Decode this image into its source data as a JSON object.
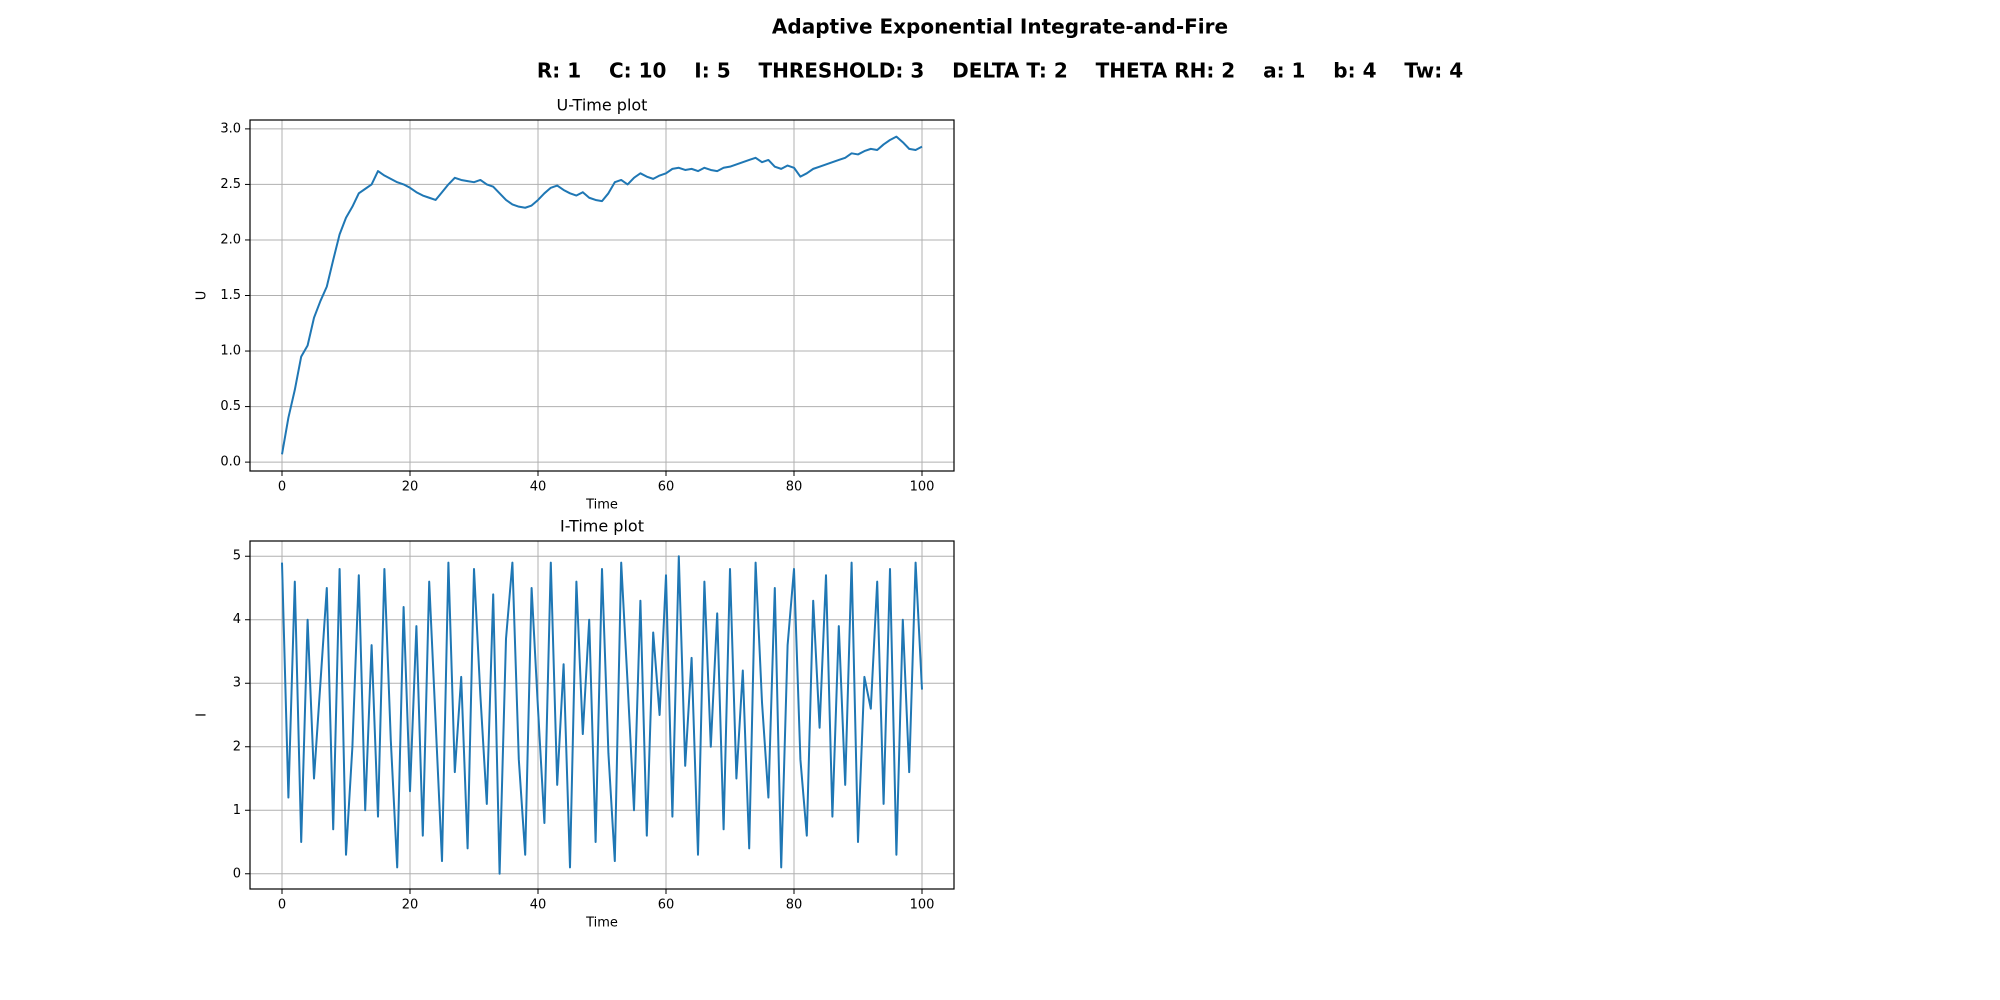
{
  "title": "Adaptive Exponential Integrate-and-Fire",
  "subtitle": "R: 1    C: 10    I: 5    THRESHOLD: 3    DELTA T: 2    THETA RH: 2    a: 1    b: 4    Tw: 4",
  "chart_data": [
    {
      "type": "line",
      "title": "U-Time plot",
      "x_label": "Time",
      "y_label": "U",
      "grid": true,
      "xlim": [
        -5,
        105
      ],
      "xticks": [
        0,
        20,
        40,
        60,
        80,
        100
      ],
      "ylim": [
        -0.08,
        3.08
      ],
      "yticks": [
        {
          "value": 0,
          "label": "0.0"
        },
        0.5,
        {
          "value": 1,
          "label": "1.0"
        },
        1.5,
        {
          "value": 2,
          "label": "2.0"
        },
        2.5,
        {
          "value": 3,
          "label": "3.0"
        }
      ],
      "x": [
        0,
        1,
        2,
        3,
        4,
        5,
        6,
        7,
        8,
        9,
        10,
        11,
        12,
        13,
        14,
        15,
        16,
        17,
        18,
        19,
        20,
        21,
        22,
        23,
        24,
        25,
        26,
        27,
        28,
        29,
        30,
        31,
        32,
        33,
        34,
        35,
        36,
        37,
        38,
        39,
        40,
        41,
        42,
        43,
        44,
        45,
        46,
        47,
        48,
        49,
        50,
        51,
        52,
        53,
        54,
        55,
        56,
        57,
        58,
        59,
        60,
        61,
        62,
        63,
        64,
        65,
        66,
        67,
        68,
        69,
        70,
        71,
        72,
        73,
        74,
        75,
        76,
        77,
        78,
        79,
        80,
        81,
        82,
        83,
        84,
        85,
        86,
        87,
        88,
        89,
        90,
        91,
        92,
        93,
        94,
        95,
        96,
        97,
        98,
        99,
        100
      ],
      "series": [
        {
          "color": "#1f77b4",
          "values": [
            0.07,
            0.4,
            0.65,
            0.95,
            1.05,
            1.3,
            1.45,
            1.58,
            1.82,
            2.05,
            2.2,
            2.3,
            2.42,
            2.46,
            2.5,
            2.62,
            2.58,
            2.55,
            2.52,
            2.5,
            2.47,
            2.43,
            2.4,
            2.38,
            2.36,
            2.43,
            2.5,
            2.56,
            2.54,
            2.53,
            2.52,
            2.54,
            2.5,
            2.48,
            2.42,
            2.36,
            2.32,
            2.3,
            2.29,
            2.31,
            2.36,
            2.42,
            2.47,
            2.49,
            2.45,
            2.42,
            2.4,
            2.43,
            2.38,
            2.36,
            2.35,
            2.42,
            2.52,
            2.54,
            2.5,
            2.56,
            2.6,
            2.57,
            2.55,
            2.58,
            2.6,
            2.64,
            2.65,
            2.63,
            2.64,
            2.62,
            2.65,
            2.63,
            2.62,
            2.65,
            2.66,
            2.68,
            2.7,
            2.72,
            2.74,
            2.7,
            2.72,
            2.66,
            2.64,
            2.67,
            2.65,
            2.57,
            2.6,
            2.64,
            2.66,
            2.68,
            2.7,
            2.72,
            2.74,
            2.78,
            2.77,
            2.8,
            2.82,
            2.81,
            2.86,
            2.9,
            2.93,
            2.88,
            2.82,
            2.81,
            2.84
          ]
        }
      ]
    },
    {
      "type": "line",
      "title": "I-Time plot",
      "x_label": "Time",
      "y_label": "I",
      "grid": true,
      "xlim": [
        -5,
        105
      ],
      "xticks": [
        0,
        20,
        40,
        60,
        80,
        100
      ],
      "ylim": [
        -0.24,
        5.24
      ],
      "yticks": [
        0,
        1,
        2,
        3,
        4,
        5
      ],
      "x": [
        0,
        1,
        2,
        3,
        4,
        5,
        6,
        7,
        8,
        9,
        10,
        11,
        12,
        13,
        14,
        15,
        16,
        17,
        18,
        19,
        20,
        21,
        22,
        23,
        24,
        25,
        26,
        27,
        28,
        29,
        30,
        31,
        32,
        33,
        34,
        35,
        36,
        37,
        38,
        39,
        40,
        41,
        42,
        43,
        44,
        45,
        46,
        47,
        48,
        49,
        50,
        51,
        52,
        53,
        54,
        55,
        56,
        57,
        58,
        59,
        60,
        61,
        62,
        63,
        64,
        65,
        66,
        67,
        68,
        69,
        70,
        71,
        72,
        73,
        74,
        75,
        76,
        77,
        78,
        79,
        80,
        81,
        82,
        83,
        84,
        85,
        86,
        87,
        88,
        89,
        90,
        91,
        92,
        93,
        94,
        95,
        96,
        97,
        98,
        99,
        100
      ],
      "series": [
        {
          "color": "#1f77b4",
          "values": [
            4.9,
            1.2,
            4.6,
            0.5,
            4.0,
            1.5,
            3.0,
            4.5,
            0.7,
            4.8,
            0.3,
            2.0,
            4.7,
            1.0,
            3.6,
            0.9,
            4.8,
            2.1,
            0.1,
            4.2,
            1.3,
            3.9,
            0.6,
            4.6,
            2.4,
            0.2,
            4.9,
            1.6,
            3.1,
            0.4,
            4.8,
            2.8,
            1.1,
            4.4,
            0.0,
            3.7,
            4.9,
            1.8,
            0.3,
            4.5,
            2.6,
            0.8,
            4.9,
            1.4,
            3.3,
            0.1,
            4.6,
            2.2,
            4.0,
            0.5,
            4.8,
            1.9,
            0.2,
            4.9,
            3.0,
            1.0,
            4.3,
            0.6,
            3.8,
            2.5,
            4.7,
            0.9,
            5.0,
            1.7,
            3.4,
            0.3,
            4.6,
            2.0,
            4.1,
            0.7,
            4.8,
            1.5,
            3.2,
            0.4,
            4.9,
            2.7,
            1.2,
            4.5,
            0.1,
            3.6,
            4.8,
            1.8,
            0.6,
            4.3,
            2.3,
            4.7,
            0.9,
            3.9,
            1.4,
            4.9,
            0.5,
            3.1,
            2.6,
            4.6,
            1.1,
            4.8,
            0.3,
            4.0,
            1.6,
            4.9,
            2.9
          ]
        }
      ]
    }
  ]
}
